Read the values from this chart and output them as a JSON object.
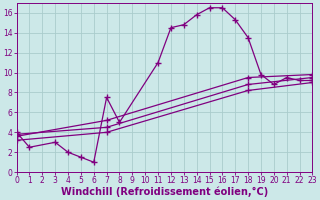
{
  "xlabel": "Windchill (Refroidissement éolien,°C)",
  "bg_color": "#cce8e8",
  "line_color": "#800080",
  "grid_color": "#aacccc",
  "line1_x": [
    0,
    1,
    3,
    4,
    5,
    6,
    7,
    8,
    11,
    12,
    13,
    14,
    15,
    16,
    17,
    18,
    19,
    20,
    21,
    22,
    23
  ],
  "line1_y": [
    4,
    2.5,
    3,
    2,
    1.5,
    1,
    7.5,
    5,
    11,
    14.5,
    14.8,
    15.8,
    16.5,
    16.5,
    15.3,
    13.5,
    9.8,
    8.8,
    9.5,
    9.2,
    9.2
  ],
  "line2_x": [
    0,
    7,
    18,
    23
  ],
  "line2_y": [
    3.8,
    4.5,
    8.8,
    9.5
  ],
  "line3_x": [
    0,
    7,
    18,
    23
  ],
  "line3_y": [
    3.2,
    4.0,
    8.2,
    9.0
  ],
  "line4_x": [
    0,
    7,
    18,
    23
  ],
  "line4_y": [
    3.6,
    5.2,
    9.5,
    9.8
  ],
  "xlim": [
    0,
    23
  ],
  "ylim": [
    0,
    17
  ],
  "xticks": [
    0,
    1,
    2,
    3,
    4,
    5,
    6,
    7,
    8,
    9,
    10,
    11,
    12,
    13,
    14,
    15,
    16,
    17,
    18,
    19,
    20,
    21,
    22,
    23
  ],
  "yticks": [
    0,
    2,
    4,
    6,
    8,
    10,
    12,
    14,
    16
  ],
  "tick_fontsize": 5.5,
  "xlabel_fontsize": 7.0
}
